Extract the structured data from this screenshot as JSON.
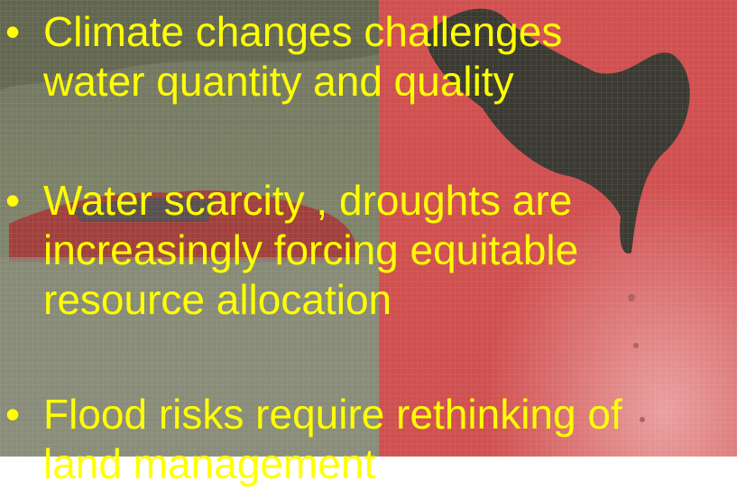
{
  "bullets": [
    {
      "lines": [
        "Climate changes challenges",
        "water quantity and quality"
      ]
    },
    {
      "lines": [
        "Water scarcity , droughts are",
        "increasingly forcing equitable",
        "resource allocation"
      ]
    },
    {
      "lines": [
        "Flood risks require  rethinking of",
        "land management"
      ]
    }
  ]
}
